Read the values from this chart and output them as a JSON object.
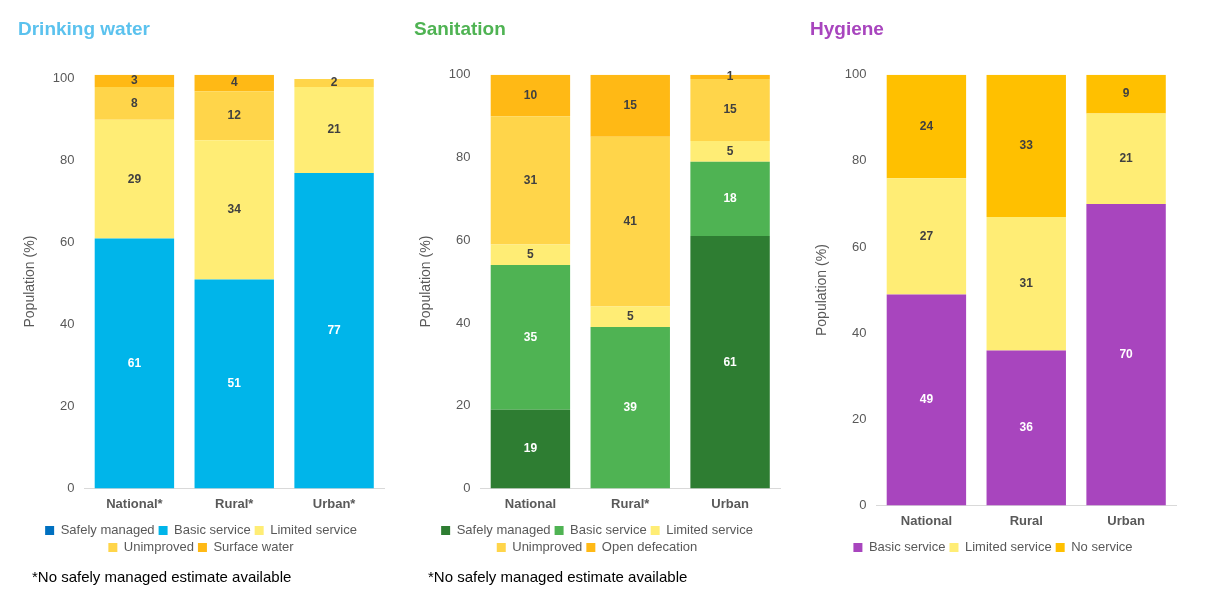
{
  "chart_data": [
    {
      "type": "bar",
      "title": "Drinking water",
      "ylabel": "Population (%)",
      "categories": [
        "National*",
        "Rural*",
        "Urban*"
      ],
      "stacked": true,
      "ylim": [
        0,
        101
      ],
      "yticks": [
        0,
        20,
        40,
        60,
        80,
        100
      ],
      "grid": false,
      "legend": "bottom",
      "data_labels": true,
      "series": [
        {
          "name": "Safely managed",
          "color": "#0070c0",
          "values": [
            null,
            null,
            null
          ]
        },
        {
          "name": "Basic service",
          "color": "#00b5ea",
          "values": [
            61,
            51,
            77
          ]
        },
        {
          "name": "Limited service",
          "color": "#ffed75",
          "values": [
            29,
            34,
            21
          ]
        },
        {
          "name": "Unimproved",
          "color": "#ffd54a",
          "values": [
            8,
            12,
            2
          ]
        },
        {
          "name": "Surface water",
          "color": "#ffb915",
          "values": [
            3,
            4,
            null
          ]
        }
      ],
      "annotations": [
        "*No safely managed estimate available"
      ]
    },
    {
      "type": "bar",
      "title": "Sanitation",
      "ylabel": "Population (%)",
      "categories": [
        "National",
        "Rural*",
        "Urban"
      ],
      "stacked": true,
      "ylim": [
        0,
        100
      ],
      "yticks": [
        0,
        20,
        40,
        60,
        80,
        100
      ],
      "grid": false,
      "legend": "bottom",
      "data_labels": true,
      "series": [
        {
          "name": "Safely managed",
          "color": "#2e7d32",
          "values": [
            19,
            null,
            61
          ]
        },
        {
          "name": "Basic service",
          "color": "#4fb353",
          "values": [
            35,
            39,
            18
          ]
        },
        {
          "name": "Limited service",
          "color": "#ffed75",
          "values": [
            5,
            5,
            5
          ]
        },
        {
          "name": "Unimproved",
          "color": "#ffd54a",
          "values": [
            31,
            41,
            15
          ]
        },
        {
          "name": "Open defecation",
          "color": "#ffb915",
          "values": [
            10,
            15,
            1
          ]
        }
      ],
      "annotations": [
        "*No safely managed estimate available"
      ]
    },
    {
      "type": "bar",
      "title": "Hygiene",
      "ylabel": "Population (%)",
      "categories": [
        "National",
        "Rural",
        "Urban"
      ],
      "stacked": true,
      "ylim": [
        0,
        100
      ],
      "yticks": [
        0,
        20,
        40,
        60,
        80,
        100
      ],
      "grid": false,
      "legend": "bottom",
      "data_labels": true,
      "series": [
        {
          "name": "Basic service",
          "color": "#a845be",
          "values": [
            49,
            36,
            70
          ]
        },
        {
          "name": "Limited service",
          "color": "#ffed75",
          "values": [
            27,
            31,
            21
          ]
        },
        {
          "name": "No service",
          "color": "#ffc000",
          "values": [
            24,
            33,
            9
          ]
        }
      ]
    }
  ]
}
